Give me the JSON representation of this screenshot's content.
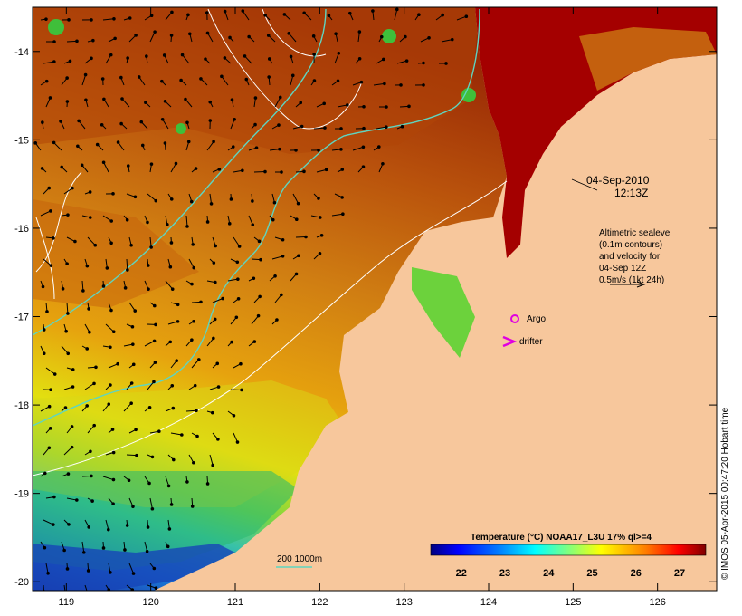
{
  "map": {
    "lon_ticks": [
      "119",
      "120",
      "121",
      "122",
      "123",
      "124",
      "125",
      "126"
    ],
    "lat_ticks": [
      "-14",
      "-15",
      "-16",
      "-17",
      "-18",
      "-19",
      "-20"
    ],
    "lon_range": [
      118.6,
      126.7
    ],
    "lat_range": [
      -20.1,
      -13.5
    ]
  },
  "annotations": {
    "date": "04-Sep-2010",
    "time": "12:13Z",
    "altimetry_lines": [
      "Altimetric sealevel",
      "(0.1m contours)",
      "and velocity for",
      "04-Sep 12Z",
      "0.5m/s (1kt 24h)"
    ],
    "argo_label": "Argo",
    "drifter_label": "drifter",
    "depth_legend": "200  1000m"
  },
  "colorbar": {
    "title": "Temperature (°C) NOAA17_L3U 17% ql>=4",
    "ticks": [
      "22",
      "23",
      "24",
      "25",
      "26",
      "27"
    ],
    "stops": [
      "#00007f",
      "#0000ff",
      "#007fff",
      "#00ffff",
      "#7fff7f",
      "#ffff00",
      "#ff7f00",
      "#ff0000",
      "#7f0000"
    ]
  },
  "credit": "© IMOS 05-Apr-2015 00:47:20 Hobart time",
  "colors": {
    "land": "#f7c79c",
    "deep_warm": "#a40000",
    "contour_white": "#ffffff",
    "bathy_cyan": "#5fd5c0",
    "argo_marker": "#e000e0"
  }
}
